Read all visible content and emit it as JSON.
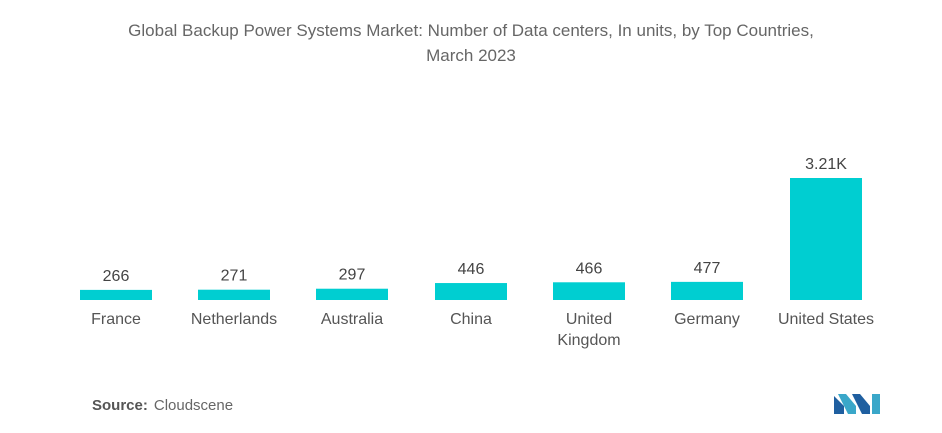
{
  "title_line1": "Global Backup Power Systems Market: Number of Data centers, In units, by Top Countries,",
  "title_line2": "March 2023",
  "source_label": "Source:",
  "source_value": "Cloudscene",
  "colors": {
    "bar": "#00CED1",
    "text": "#555555"
  },
  "logo_icon": "mordor-intelligence-logo",
  "chart_data": {
    "type": "bar",
    "title": "Global Backup Power Systems Market: Number of Data centers, In units, by Top Countries, March 2023",
    "categories": [
      "France",
      "Netherlands",
      "Australia",
      "China",
      "United Kingdom",
      "Germany",
      "United States"
    ],
    "category_lines": [
      [
        "France"
      ],
      [
        "Netherlands"
      ],
      [
        "Australia"
      ],
      [
        "China"
      ],
      [
        "United",
        "Kingdom"
      ],
      [
        "Germany"
      ],
      [
        "United States"
      ]
    ],
    "values": [
      266,
      271,
      297,
      446,
      466,
      477,
      3210
    ],
    "data_labels": [
      "266",
      "271",
      "297",
      "446",
      "466",
      "477",
      "3.21K"
    ],
    "xlabel": "",
    "ylabel": "",
    "grid": false,
    "legend": false
  }
}
